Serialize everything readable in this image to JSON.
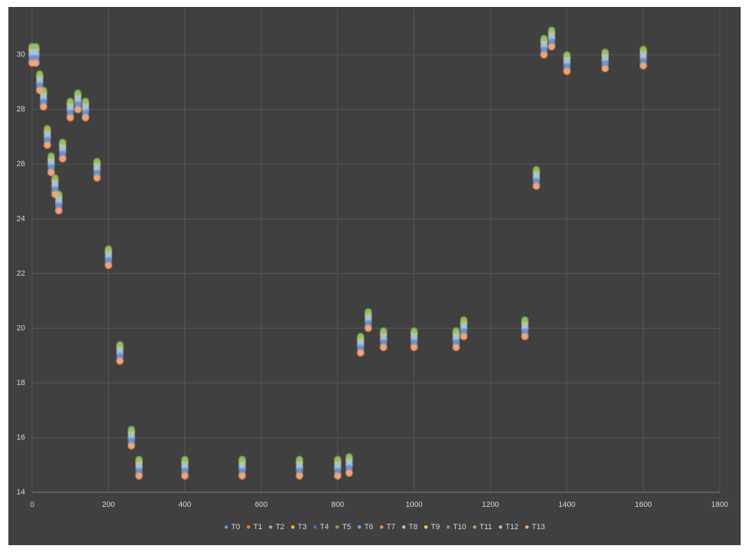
{
  "chart_data": {
    "type": "scatter",
    "x": [
      0,
      10,
      20,
      30,
      40,
      50,
      60,
      70,
      80,
      100,
      120,
      140,
      170,
      200,
      230,
      260,
      280,
      400,
      550,
      700,
      800,
      830,
      860,
      880,
      920,
      1000,
      1110,
      1130,
      1290,
      1320,
      1340,
      1360,
      1400,
      1500,
      1600
    ],
    "xlim": [
      0,
      1800
    ],
    "xticks": [
      0,
      200,
      400,
      600,
      800,
      1000,
      1200,
      1400,
      1600,
      1800
    ],
    "ylim": [
      14,
      31.7
    ],
    "yticks": [
      14,
      16,
      18,
      20,
      22,
      24,
      26,
      28,
      30
    ],
    "grid": true,
    "legend": "bottom",
    "series": [
      {
        "name": "T0",
        "color": "#5b9bd5",
        "values": [
          30.1,
          30.1,
          29.1,
          28.5,
          27.1,
          26.1,
          25.3,
          24.7,
          26.6,
          28.1,
          28.4,
          28.1,
          25.9,
          22.7,
          19.2,
          16.1,
          15.0,
          15.0,
          15.0,
          15.0,
          15.0,
          15.1,
          19.5,
          20.4,
          19.7,
          19.7,
          19.7,
          20.1,
          20.1,
          25.6,
          30.4,
          30.7,
          29.8,
          29.9,
          30.0
        ]
      },
      {
        "name": "T1",
        "color": "#ed7d31",
        "values": [
          29.7,
          29.7,
          28.7,
          28.1,
          26.7,
          25.7,
          24.9,
          24.3,
          26.2,
          27.7,
          28.0,
          27.7,
          25.5,
          22.3,
          18.8,
          15.7,
          14.6,
          14.6,
          14.6,
          14.6,
          14.6,
          14.7,
          19.1,
          20.0,
          19.3,
          19.3,
          19.3,
          19.7,
          19.7,
          25.2,
          30.0,
          30.3,
          29.4,
          29.5,
          29.6
        ]
      },
      {
        "name": "T2",
        "color": "#a5a5a5",
        "values": [
          30.0,
          30.0,
          29.0,
          28.4,
          27.0,
          26.0,
          25.2,
          24.6,
          26.5,
          28.0,
          28.3,
          28.0,
          25.8,
          22.6,
          19.1,
          16.0,
          14.9,
          14.9,
          14.9,
          14.9,
          14.9,
          15.0,
          19.4,
          20.3,
          19.6,
          19.6,
          19.6,
          20.0,
          20.0,
          25.5,
          30.3,
          30.6,
          29.7,
          29.8,
          29.9
        ]
      },
      {
        "name": "T3",
        "color": "#ffc000",
        "values": [
          30.2,
          30.2,
          29.2,
          28.6,
          27.2,
          26.2,
          25.4,
          24.8,
          26.7,
          28.2,
          28.5,
          28.2,
          26.0,
          22.8,
          19.3,
          16.2,
          15.1,
          15.1,
          15.1,
          15.1,
          15.1,
          15.2,
          19.6,
          20.5,
          19.8,
          19.8,
          19.8,
          20.2,
          20.2,
          25.7,
          30.5,
          30.8,
          29.9,
          30.0,
          30.1
        ]
      },
      {
        "name": "T4",
        "color": "#4472c4",
        "values": [
          29.9,
          29.9,
          28.9,
          28.3,
          26.9,
          25.9,
          25.1,
          24.5,
          26.4,
          27.9,
          28.2,
          27.9,
          25.7,
          22.5,
          19.0,
          15.9,
          14.8,
          14.8,
          14.8,
          14.8,
          14.8,
          14.9,
          19.3,
          20.2,
          19.5,
          19.5,
          19.5,
          19.9,
          19.9,
          25.4,
          30.2,
          30.5,
          29.6,
          29.7,
          29.8
        ]
      },
      {
        "name": "T5",
        "color": "#70ad47",
        "values": [
          30.3,
          30.3,
          29.3,
          28.7,
          27.3,
          26.3,
          25.5,
          24.9,
          26.8,
          28.3,
          28.6,
          28.3,
          26.1,
          22.9,
          19.4,
          16.3,
          15.2,
          15.2,
          15.2,
          15.2,
          15.2,
          15.3,
          19.7,
          20.6,
          19.9,
          19.9,
          19.9,
          20.3,
          20.3,
          25.8,
          30.6,
          30.9,
          30.0,
          30.1,
          30.2
        ]
      },
      {
        "name": "T6",
        "color": "#6fa8dc",
        "values": [
          29.8,
          29.8,
          28.8,
          28.2,
          26.8,
          25.8,
          25.0,
          24.4,
          26.3,
          27.8,
          28.1,
          27.8,
          25.6,
          22.4,
          18.9,
          15.8,
          14.7,
          14.7,
          14.7,
          14.7,
          14.7,
          14.8,
          19.2,
          20.1,
          19.4,
          19.4,
          19.4,
          19.8,
          19.8,
          25.3,
          30.1,
          30.4,
          29.5,
          29.6,
          29.7
        ]
      },
      {
        "name": "T7",
        "color": "#f4874b",
        "values": [
          29.7,
          29.7,
          28.7,
          28.1,
          26.7,
          25.7,
          24.9,
          24.3,
          26.2,
          27.7,
          28.0,
          27.7,
          25.5,
          22.3,
          18.8,
          15.7,
          14.6,
          14.6,
          14.6,
          14.6,
          14.6,
          14.7,
          19.1,
          20.0,
          19.3,
          19.3,
          19.3,
          19.7,
          19.7,
          25.2,
          30.0,
          30.3,
          29.4,
          29.5,
          29.6
        ]
      },
      {
        "name": "T8",
        "color": "#bfbfbf",
        "values": [
          30.0,
          30.0,
          29.0,
          28.4,
          27.0,
          26.0,
          25.2,
          24.6,
          26.5,
          28.0,
          28.3,
          28.0,
          25.8,
          22.6,
          19.1,
          16.0,
          14.9,
          14.9,
          14.9,
          14.9,
          14.9,
          15.0,
          19.4,
          20.3,
          19.6,
          19.6,
          19.6,
          20.0,
          20.0,
          25.5,
          30.3,
          30.6,
          29.7,
          29.8,
          29.9
        ]
      },
      {
        "name": "T9",
        "color": "#ffcd33",
        "values": [
          30.2,
          30.2,
          29.2,
          28.6,
          27.2,
          26.2,
          25.4,
          24.8,
          26.7,
          28.2,
          28.5,
          28.2,
          26.0,
          22.8,
          19.3,
          16.2,
          15.1,
          15.1,
          15.1,
          15.1,
          15.1,
          15.2,
          19.6,
          20.5,
          19.8,
          19.8,
          19.8,
          20.2,
          20.2,
          25.7,
          30.5,
          30.8,
          29.9,
          30.0,
          30.1
        ]
      },
      {
        "name": "T10",
        "color": "#698ed0",
        "values": [
          29.9,
          29.9,
          28.9,
          28.3,
          26.9,
          25.9,
          25.1,
          24.5,
          26.4,
          27.9,
          28.2,
          27.9,
          25.7,
          22.5,
          19.0,
          15.9,
          14.8,
          14.8,
          14.8,
          14.8,
          14.8,
          14.9,
          19.3,
          20.2,
          19.5,
          19.5,
          19.5,
          19.9,
          19.9,
          25.4,
          30.2,
          30.5,
          29.6,
          29.7,
          29.8
        ]
      },
      {
        "name": "T11",
        "color": "#8cc168",
        "values": [
          30.3,
          30.3,
          29.3,
          28.7,
          27.3,
          26.3,
          25.5,
          24.9,
          26.8,
          28.3,
          28.6,
          28.3,
          26.1,
          22.9,
          19.4,
          16.3,
          15.2,
          15.2,
          15.2,
          15.2,
          15.2,
          15.3,
          19.7,
          20.6,
          19.9,
          19.9,
          19.9,
          20.3,
          20.3,
          25.8,
          30.6,
          30.9,
          30.0,
          30.1,
          30.2
        ]
      },
      {
        "name": "T12",
        "color": "#9dc3e6",
        "values": [
          30.1,
          30.1,
          29.1,
          28.5,
          27.1,
          26.1,
          25.3,
          24.7,
          26.6,
          28.1,
          28.4,
          28.1,
          25.9,
          22.7,
          19.2,
          16.1,
          15.0,
          15.0,
          15.0,
          15.0,
          15.0,
          15.1,
          19.5,
          20.4,
          19.7,
          19.7,
          19.7,
          20.1,
          20.1,
          25.6,
          30.4,
          30.7,
          29.8,
          29.9,
          30.0
        ]
      },
      {
        "name": "T13",
        "color": "#f8a67a",
        "values": [
          29.7,
          29.7,
          28.7,
          28.1,
          26.7,
          25.7,
          24.9,
          24.3,
          26.2,
          27.7,
          28.0,
          27.7,
          25.5,
          22.3,
          18.8,
          15.7,
          14.6,
          14.6,
          14.6,
          14.6,
          14.6,
          14.7,
          19.1,
          20.0,
          19.3,
          19.3,
          19.3,
          19.7,
          19.7,
          25.2,
          30.0,
          30.3,
          29.4,
          29.5,
          29.6
        ]
      }
    ]
  }
}
